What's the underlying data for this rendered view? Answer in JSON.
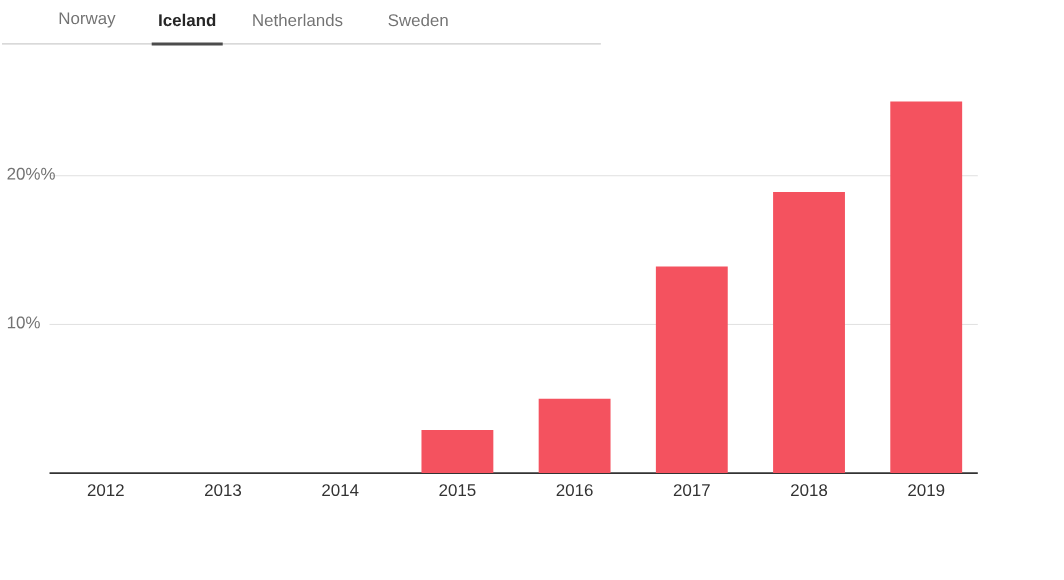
{
  "chart_data": {
    "type": "bar",
    "annotations": [
      "Norway",
      "Iceland",
      "Netherlands",
      "Sweden"
    ],
    "categories": [
      "2012",
      "2013",
      "2014",
      "2015",
      "2016",
      "2017",
      "2018",
      "2019"
    ],
    "values": [
      0,
      0,
      0,
      2.9,
      5.0,
      13.9,
      18.9,
      25.0
    ],
    "color": "#f4525f",
    "ylim": [
      0,
      25
    ],
    "yticks": [
      {
        "value": 10,
        "label": "10%"
      },
      {
        "value": 20,
        "label": "20%%"
      }
    ],
    "grid": "y"
  }
}
